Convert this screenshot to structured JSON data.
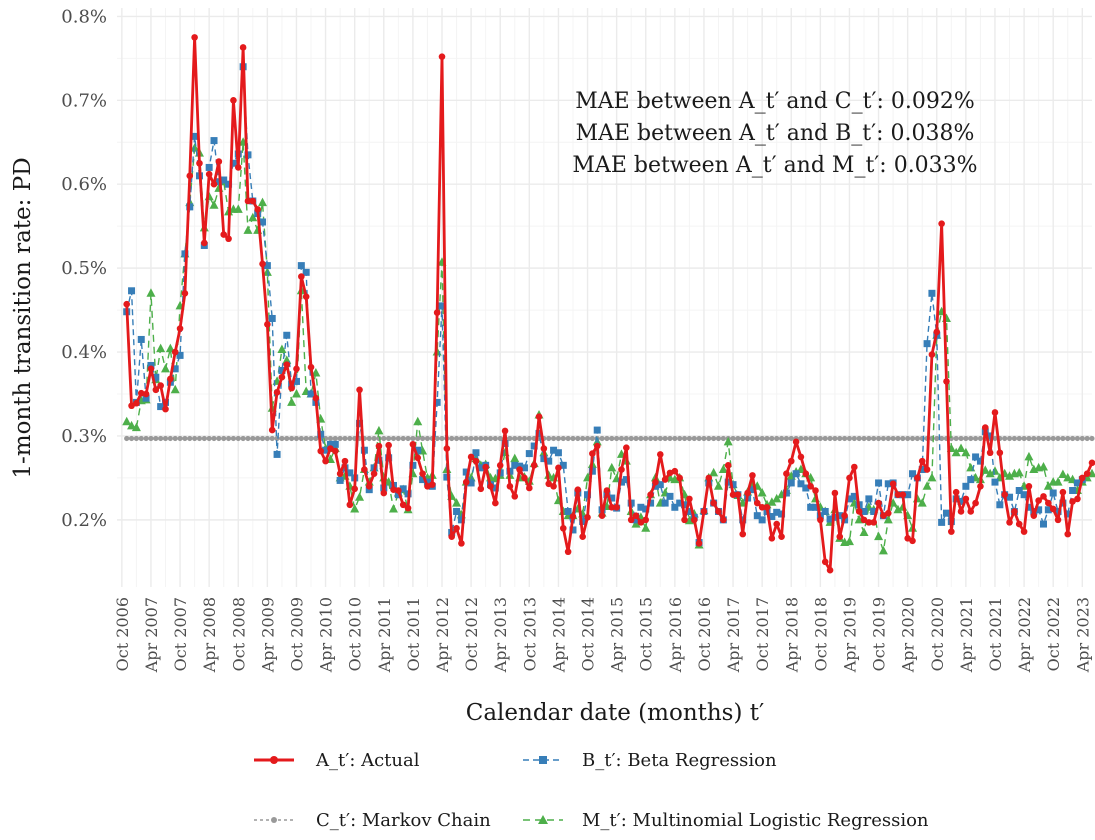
{
  "chart_data": {
    "type": "line",
    "xlabel": "Calendar date (months) t′",
    "ylabel": "1-month transition rate: PD",
    "ylim": [
      0.12,
      0.81
    ],
    "yticks": [
      0.2,
      0.3,
      0.4,
      0.5,
      0.6,
      0.7,
      0.8
    ],
    "ytick_labels": [
      "0.2%",
      "0.3%",
      "0.4%",
      "0.5%",
      "0.6%",
      "0.7%",
      "0.8%"
    ],
    "xticks": [
      {
        "t": 0,
        "label": "Oct 2006"
      },
      {
        "t": 6,
        "label": "Apr 2007"
      },
      {
        "t": 12,
        "label": "Oct 2007"
      },
      {
        "t": 18,
        "label": "Apr 2008"
      },
      {
        "t": 24,
        "label": "Oct 2008"
      },
      {
        "t": 30,
        "label": "Apr 2009"
      },
      {
        "t": 36,
        "label": "Oct 2009"
      },
      {
        "t": 42,
        "label": "Apr 2010"
      },
      {
        "t": 48,
        "label": "Oct 2010"
      },
      {
        "t": 54,
        "label": "Apr 2011"
      },
      {
        "t": 60,
        "label": "Oct 2011"
      },
      {
        "t": 66,
        "label": "Apr 2012"
      },
      {
        "t": 72,
        "label": "Oct 2012"
      },
      {
        "t": 78,
        "label": "Apr 2013"
      },
      {
        "t": 84,
        "label": "Oct 2013"
      },
      {
        "t": 90,
        "label": "Apr 2014"
      },
      {
        "t": 96,
        "label": "Oct 2014"
      },
      {
        "t": 102,
        "label": "Apr 2015"
      },
      {
        "t": 108,
        "label": "Oct 2015"
      },
      {
        "t": 114,
        "label": "Apr 2016"
      },
      {
        "t": 120,
        "label": "Oct 2016"
      },
      {
        "t": 126,
        "label": "Apr 2017"
      },
      {
        "t": 132,
        "label": "Oct 2017"
      },
      {
        "t": 138,
        "label": "Apr 2018"
      },
      {
        "t": 144,
        "label": "Oct 2018"
      },
      {
        "t": 150,
        "label": "Apr 2019"
      },
      {
        "t": 156,
        "label": "Oct 2019"
      },
      {
        "t": 162,
        "label": "Apr 2020"
      },
      {
        "t": 168,
        "label": "Oct 2020"
      },
      {
        "t": 174,
        "label": "Apr 2021"
      },
      {
        "t": 180,
        "label": "Oct 2021"
      },
      {
        "t": 186,
        "label": "Apr 2022"
      },
      {
        "t": 192,
        "label": "Oct 2022"
      },
      {
        "t": 198,
        "label": "Apr 2023"
      }
    ],
    "xlim_months": [
      -1,
      200
    ],
    "x_start_month": 1,
    "annotations": [
      "MAE between A_t′ and C_t′: 0.092%",
      "MAE between A_t′ and B_t′: 0.038%",
      "MAE between A_t′ and M_t′: 0.033%"
    ],
    "series": [
      {
        "key": "A",
        "name": "A_t′: Actual",
        "color": "#e41a1c",
        "dash": "",
        "marker": "circle",
        "values": [
          0.457,
          0.336,
          0.339,
          0.351,
          0.35,
          0.38,
          0.355,
          0.36,
          0.332,
          0.368,
          0.4,
          0.428,
          0.47,
          0.61,
          0.775,
          0.625,
          0.53,
          0.612,
          0.6,
          0.627,
          0.54,
          0.535,
          0.7,
          0.62,
          0.763,
          0.58,
          0.58,
          0.57,
          0.505,
          0.433,
          0.307,
          0.352,
          0.37,
          0.385,
          0.357,
          0.38,
          0.49,
          0.466,
          0.382,
          0.345,
          0.282,
          0.27,
          0.285,
          0.282,
          0.255,
          0.27,
          0.218,
          0.237,
          0.355,
          0.26,
          0.24,
          0.255,
          0.288,
          0.232,
          0.289,
          0.236,
          0.235,
          0.218,
          0.214,
          0.29,
          0.274,
          0.255,
          0.24,
          0.242,
          0.447,
          0.752,
          0.285,
          0.18,
          0.19,
          0.172,
          0.245,
          0.275,
          0.27,
          0.237,
          0.263,
          0.24,
          0.22,
          0.265,
          0.306,
          0.24,
          0.228,
          0.26,
          0.25,
          0.238,
          0.265,
          0.323,
          0.285,
          0.243,
          0.24,
          0.262,
          0.19,
          0.162,
          0.204,
          0.236,
          0.18,
          0.203,
          0.279,
          0.288,
          0.205,
          0.235,
          0.215,
          0.215,
          0.26,
          0.286,
          0.2,
          0.205,
          0.197,
          0.2,
          0.23,
          0.245,
          0.278,
          0.248,
          0.256,
          0.258,
          0.25,
          0.2,
          0.225,
          0.2,
          0.172,
          0.21,
          0.25,
          0.22,
          0.21,
          0.2,
          0.265,
          0.23,
          0.23,
          0.183,
          0.232,
          0.253,
          0.22,
          0.215,
          0.215,
          0.178,
          0.195,
          0.18,
          0.255,
          0.27,
          0.293,
          0.275,
          0.255,
          0.24,
          0.235,
          0.2,
          0.15,
          0.14,
          0.232,
          0.18,
          0.205,
          0.25,
          0.263,
          0.21,
          0.2,
          0.197,
          0.197,
          0.22,
          0.205,
          0.208,
          0.243,
          0.23,
          0.23,
          0.178,
          0.175,
          0.25,
          0.27,
          0.26,
          0.397,
          0.424,
          0.553,
          0.365,
          0.186,
          0.233,
          0.21,
          0.225,
          0.21,
          0.22,
          0.24,
          0.31,
          0.28,
          0.328,
          0.28,
          0.23,
          0.197,
          0.21,
          0.195,
          0.186,
          0.24,
          0.205,
          0.223,
          0.228,
          0.22,
          0.213,
          0.2,
          0.233,
          0.183,
          0.222,
          0.225,
          0.25,
          0.255,
          0.268
        ]
      },
      {
        "key": "B",
        "name": "B_t′: Beta Regression",
        "color": "#377eb8",
        "dash": "6,4",
        "marker": "square",
        "values": [
          0.448,
          0.473,
          0.34,
          0.415,
          0.345,
          0.384,
          0.37,
          0.335,
          0.34,
          0.364,
          0.38,
          0.396,
          0.517,
          0.573,
          0.657,
          0.61,
          0.527,
          0.62,
          0.652,
          0.603,
          0.605,
          0.6,
          0.625,
          0.636,
          0.74,
          0.635,
          0.58,
          0.565,
          0.555,
          0.503,
          0.44,
          0.278,
          0.378,
          0.42,
          0.362,
          0.365,
          0.503,
          0.495,
          0.35,
          0.34,
          0.302,
          0.283,
          0.29,
          0.29,
          0.247,
          0.262,
          0.256,
          0.25,
          0.315,
          0.283,
          0.236,
          0.262,
          0.271,
          0.238,
          0.274,
          0.241,
          0.23,
          0.237,
          0.231,
          0.265,
          0.283,
          0.248,
          0.245,
          0.24,
          0.34,
          0.455,
          0.251,
          0.185,
          0.21,
          0.2,
          0.257,
          0.244,
          0.28,
          0.262,
          0.265,
          0.242,
          0.238,
          0.256,
          0.291,
          0.258,
          0.265,
          0.264,
          0.262,
          0.279,
          0.288,
          0.303,
          0.273,
          0.27,
          0.283,
          0.28,
          0.265,
          0.21,
          0.188,
          0.232,
          0.198,
          0.23,
          0.258,
          0.307,
          0.212,
          0.23,
          0.226,
          0.214,
          0.245,
          0.248,
          0.22,
          0.2,
          0.215,
          0.213,
          0.22,
          0.24,
          0.242,
          0.22,
          0.228,
          0.215,
          0.22,
          0.218,
          0.21,
          0.203,
          0.173,
          0.21,
          0.244,
          0.22,
          0.21,
          0.2,
          0.245,
          0.242,
          0.23,
          0.2,
          0.226,
          0.236,
          0.205,
          0.2,
          0.21,
          0.204,
          0.209,
          0.207,
          0.232,
          0.244,
          0.255,
          0.243,
          0.238,
          0.215,
          0.215,
          0.205,
          0.21,
          0.201,
          0.203,
          0.205,
          0.2,
          0.225,
          0.228,
          0.218,
          0.21,
          0.225,
          0.21,
          0.244,
          0.205,
          0.243,
          0.244,
          0.23,
          0.23,
          0.23,
          0.255,
          0.25,
          0.26,
          0.41,
          0.47,
          0.42,
          0.197,
          0.208,
          0.198,
          0.225,
          0.222,
          0.24,
          0.248,
          0.275,
          0.27,
          0.305,
          0.3,
          0.245,
          0.218,
          0.23,
          0.227,
          0.21,
          0.235,
          0.23,
          0.215,
          0.21,
          0.212,
          0.195,
          0.212,
          0.232,
          0.21,
          0.22,
          0.207,
          0.235,
          0.244,
          0.248
        ]
      },
      {
        "key": "C",
        "name": "C_t′: Markov Chain",
        "color": "#999999",
        "dash": "3,3",
        "marker": "circle-small",
        "constant": 0.297
      },
      {
        "key": "M",
        "name": "M_t′: Multinomial Logistic Regression",
        "color": "#4daf4a",
        "dash": "7,5",
        "marker": "triangle",
        "values": [
          0.317,
          0.312,
          0.31,
          0.342,
          0.343,
          0.47,
          0.367,
          0.404,
          0.38,
          0.404,
          0.355,
          0.455,
          0.517,
          0.578,
          0.643,
          0.637,
          0.548,
          0.585,
          0.575,
          0.595,
          0.603,
          0.567,
          0.57,
          0.57,
          0.65,
          0.545,
          0.56,
          0.545,
          0.578,
          0.495,
          0.333,
          0.365,
          0.403,
          0.39,
          0.34,
          0.35,
          0.473,
          0.353,
          0.35,
          0.375,
          0.32,
          0.285,
          0.272,
          0.285,
          0.25,
          0.252,
          0.24,
          0.213,
          0.227,
          0.26,
          0.245,
          0.262,
          0.306,
          0.25,
          0.245,
          0.213,
          0.232,
          0.236,
          0.212,
          0.255,
          0.317,
          0.282,
          0.25,
          0.253,
          0.4,
          0.507,
          0.26,
          0.228,
          0.22,
          0.206,
          0.245,
          0.25,
          0.273,
          0.265,
          0.266,
          0.25,
          0.249,
          0.253,
          0.28,
          0.253,
          0.273,
          0.25,
          0.251,
          0.246,
          0.267,
          0.325,
          0.28,
          0.253,
          0.25,
          0.223,
          0.21,
          0.205,
          0.205,
          0.213,
          0.207,
          0.25,
          0.266,
          0.293,
          0.208,
          0.216,
          0.262,
          0.249,
          0.278,
          0.27,
          0.21,
          0.195,
          0.203,
          0.19,
          0.23,
          0.25,
          0.22,
          0.232,
          0.25,
          0.248,
          0.25,
          0.23,
          0.199,
          0.207,
          0.17,
          0.211,
          0.25,
          0.256,
          0.24,
          0.26,
          0.293,
          0.242,
          0.229,
          0.22,
          0.233,
          0.242,
          0.24,
          0.232,
          0.218,
          0.221,
          0.225,
          0.23,
          0.235,
          0.252,
          0.257,
          0.26,
          0.255,
          0.25,
          0.225,
          0.215,
          0.21,
          0.197,
          0.212,
          0.178,
          0.173,
          0.174,
          0.22,
          0.2,
          0.185,
          0.215,
          0.212,
          0.18,
          0.163,
          0.2,
          0.22,
          0.212,
          0.215,
          0.205,
          0.19,
          0.225,
          0.22,
          0.24,
          0.25,
          0.42,
          0.448,
          0.44,
          0.285,
          0.28,
          0.285,
          0.28,
          0.262,
          0.25,
          0.248,
          0.259,
          0.255,
          0.258,
          0.25,
          0.255,
          0.252,
          0.255,
          0.256,
          0.24,
          0.275,
          0.26,
          0.262,
          0.263,
          0.24,
          0.245,
          0.245,
          0.254,
          0.25,
          0.248,
          0.235,
          0.245,
          0.25,
          0.255
        ]
      }
    ]
  }
}
